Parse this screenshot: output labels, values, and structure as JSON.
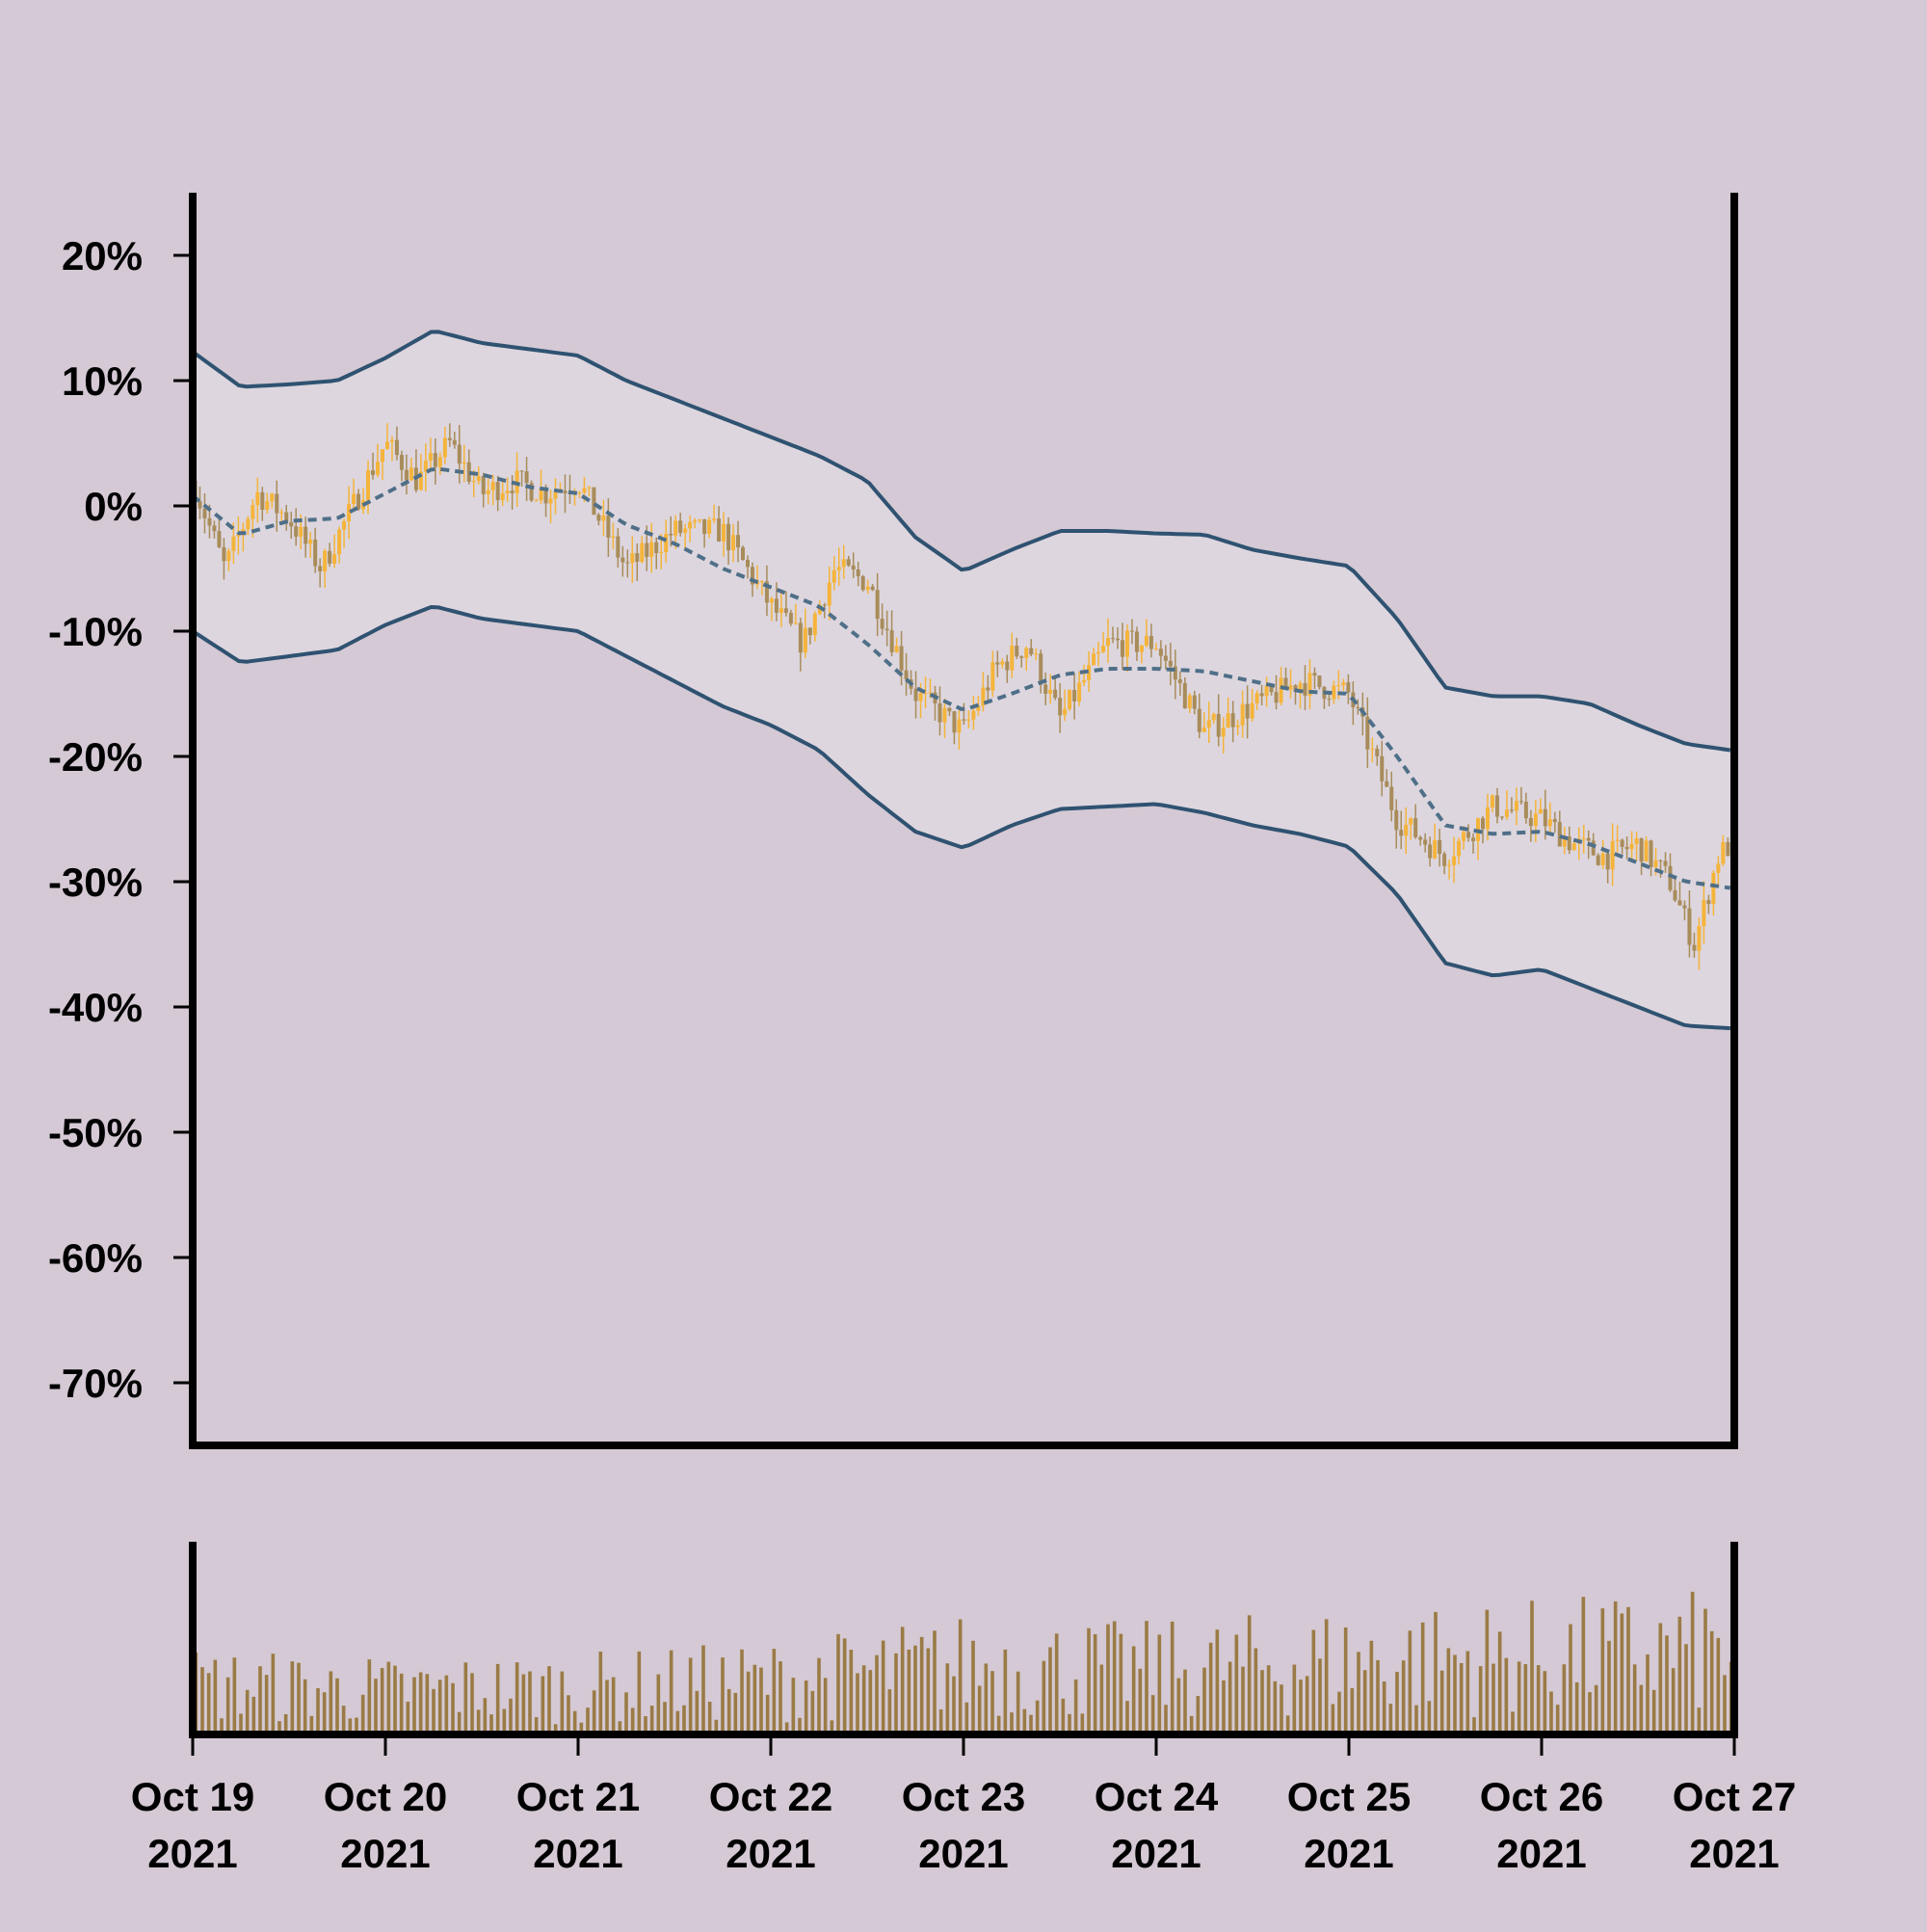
{
  "chart_data": {
    "type": "candlestick",
    "colors": {
      "background": "#d4c9d4",
      "band_fill": "#ddd6de",
      "band_line": "#2f5271",
      "middle_line": "#4f6f88",
      "candle_up": "#f5b43a",
      "candle_down": "#a88c5a",
      "volume": "#9a7b45",
      "axis": "#000000"
    },
    "price_panel": {
      "y_unit": "percent",
      "ylim": [
        -75,
        25
      ],
      "yticks": [
        20,
        10,
        0,
        -10,
        -20,
        -30,
        -40,
        -50,
        -60,
        -70
      ],
      "ytick_labels": [
        "20%",
        "10%",
        "0%",
        "-10%",
        "-20%",
        "-30%",
        "-40%",
        "-50%",
        "-60%",
        "-70%"
      ],
      "grid": false,
      "bollinger_anchors": {
        "dates": [
          "2021-10-19T00:00",
          "2021-10-19T06:00",
          "2021-10-19T12:00",
          "2021-10-19T18:00",
          "2021-10-20T00:00",
          "2021-10-20T06:00",
          "2021-10-20T12:00",
          "2021-10-20T18:00",
          "2021-10-21T00:00",
          "2021-10-21T06:00",
          "2021-10-21T12:00",
          "2021-10-21T18:00",
          "2021-10-22T00:00",
          "2021-10-22T06:00",
          "2021-10-22T12:00",
          "2021-10-22T18:00",
          "2021-10-23T00:00",
          "2021-10-23T06:00",
          "2021-10-23T12:00",
          "2021-10-23T18:00",
          "2021-10-24T00:00",
          "2021-10-24T06:00",
          "2021-10-24T12:00",
          "2021-10-24T18:00",
          "2021-10-25T00:00",
          "2021-10-25T06:00",
          "2021-10-25T12:00",
          "2021-10-25T18:00",
          "2021-10-26T00:00",
          "2021-10-26T06:00",
          "2021-10-26T12:00",
          "2021-10-26T18:00",
          "2021-10-26T23:30"
        ],
        "upper": [
          12.3,
          9.5,
          9.7,
          10.0,
          11.8,
          14.0,
          13.0,
          12.5,
          12.0,
          10.0,
          8.5,
          7.0,
          5.5,
          4.0,
          2.0,
          -2.5,
          -5.2,
          -3.5,
          -2.0,
          -2.0,
          -2.2,
          -2.3,
          -3.5,
          -4.2,
          -4.8,
          -9.0,
          -14.5,
          -15.2,
          -15.2,
          -15.8,
          -17.5,
          -19.0,
          -19.5
        ],
        "middle": [
          0.8,
          -2.3,
          -1.2,
          -1.0,
          1.0,
          3.0,
          2.5,
          1.5,
          1.0,
          -1.5,
          -3.0,
          -5.0,
          -6.5,
          -8.0,
          -11.0,
          -14.5,
          -16.3,
          -15.0,
          -13.5,
          -13.0,
          -13.0,
          -13.2,
          -14.0,
          -14.8,
          -15.0,
          -20.0,
          -25.5,
          -26.2,
          -26.0,
          -27.0,
          -28.5,
          -30.0,
          -30.5
        ],
        "lower": [
          -10.0,
          -12.5,
          -12.0,
          -11.5,
          -9.5,
          -8.0,
          -9.0,
          -9.5,
          -10.0,
          -12.0,
          -14.0,
          -16.0,
          -17.5,
          -19.5,
          -23.0,
          -26.0,
          -27.3,
          -25.5,
          -24.2,
          -24.0,
          -23.8,
          -24.5,
          -25.5,
          -26.2,
          -27.2,
          -31.0,
          -36.5,
          -37.5,
          -37.0,
          -38.5,
          -40.0,
          -41.5,
          -41.7
        ]
      },
      "close_anchors": {
        "dates": [
          "2021-10-19T00:00",
          "2021-10-19T04:00",
          "2021-10-19T08:00",
          "2021-10-19T12:00",
          "2021-10-19T16:00",
          "2021-10-20T00:00",
          "2021-10-20T04:00",
          "2021-10-20T08:00",
          "2021-10-20T12:00",
          "2021-10-20T16:00",
          "2021-10-20T20:00",
          "2021-10-21T00:00",
          "2021-10-21T06:00",
          "2021-10-21T12:00",
          "2021-10-21T18:00",
          "2021-10-22T00:00",
          "2021-10-22T04:00",
          "2021-10-22T08:00",
          "2021-10-22T12:00",
          "2021-10-22T18:00",
          "2021-10-23T00:00",
          "2021-10-23T04:00",
          "2021-10-23T08:00",
          "2021-10-23T12:00",
          "2021-10-23T18:00",
          "2021-10-24T00:00",
          "2021-10-24T06:00",
          "2021-10-24T12:00",
          "2021-10-24T18:00",
          "2021-10-25T00:00",
          "2021-10-25T06:00",
          "2021-10-25T12:00",
          "2021-10-25T18:00",
          "2021-10-26T00:00",
          "2021-10-26T04:00",
          "2021-10-26T08:00",
          "2021-10-26T12:00",
          "2021-10-26T16:00",
          "2021-10-26T19:00",
          "2021-10-26T22:00",
          "2021-10-26T23:30"
        ],
        "values": [
          2,
          -5,
          1,
          -1,
          -5,
          5,
          2,
          5,
          1,
          2,
          1,
          2,
          -5,
          -2,
          -2,
          -8,
          -11,
          -5,
          -6,
          -15,
          -18,
          -13,
          -11,
          -17,
          -11,
          -11,
          -18,
          -16,
          -14,
          -15,
          -25,
          -28,
          -24,
          -25,
          -27,
          -28,
          -27,
          -30,
          -35,
          -28,
          -27
        ]
      }
    },
    "volume_panel": {
      "y_label": "",
      "anchor_dates": [
        "2021-10-19",
        "2021-10-20",
        "2021-10-21",
        "2021-10-22",
        "2021-10-23",
        "2021-10-24",
        "2021-10-25",
        "2021-10-26",
        "2021-10-27"
      ],
      "relative_level": [
        0.45,
        0.4,
        0.42,
        0.48,
        0.62,
        0.58,
        0.66,
        0.7,
        0.75
      ]
    },
    "x_axis": {
      "start": "2021-10-19",
      "end": "2021-10-27",
      "ticks": [
        {
          "date": "2021-10-19",
          "line1": "Oct 19",
          "line2": "2021"
        },
        {
          "date": "2021-10-20",
          "line1": "Oct 20",
          "line2": "2021"
        },
        {
          "date": "2021-10-21",
          "line1": "Oct 21",
          "line2": "2021"
        },
        {
          "date": "2021-10-22",
          "line1": "Oct 22",
          "line2": "2021"
        },
        {
          "date": "2021-10-23",
          "line1": "Oct 23",
          "line2": "2021"
        },
        {
          "date": "2021-10-24",
          "line1": "Oct 24",
          "line2": "2021"
        },
        {
          "date": "2021-10-25",
          "line1": "Oct 25",
          "line2": "2021"
        },
        {
          "date": "2021-10-26",
          "line1": "Oct 26",
          "line2": "2021"
        },
        {
          "date": "2021-10-27",
          "line1": "Oct 27",
          "line2": "2021"
        }
      ]
    }
  }
}
